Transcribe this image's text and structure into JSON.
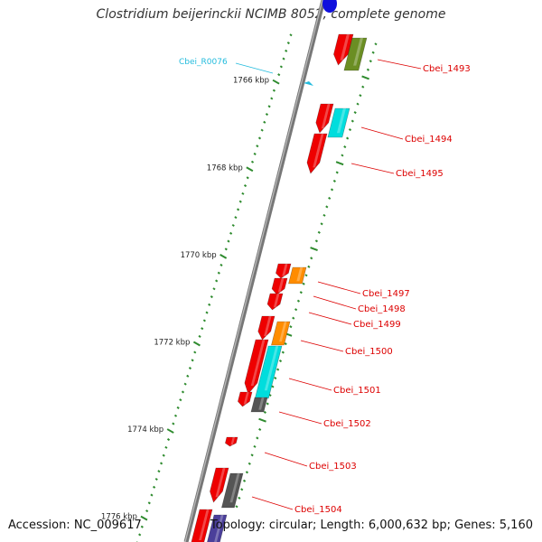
{
  "title": "Clostridium beijerinckii NCIMB 8052, complete genome",
  "footer": {
    "accession": "Accession: NC_009617",
    "topology": "Topology: circular; Length: 6,000,632 bp; Genes: 5,160"
  },
  "colors": {
    "backbone": "#777777",
    "tick": "#2e8b2e",
    "gene_label": "#dd0000",
    "rna_label": "#22bbdd",
    "red": "#ee0000",
    "olive": "#6b8e23",
    "cyan": "#00dddd",
    "orange": "#ff8c00",
    "gray": "#555555",
    "slate": "#4b3f9a",
    "blue": "#1010dd"
  },
  "kbp_labels": [
    "1766 kbp",
    "1768 kbp",
    "1770 kbp",
    "1772 kbp",
    "1774 kbp",
    "1776 kbp"
  ],
  "gene_labels": [
    "Cbei_1493",
    "Cbei_1494",
    "Cbei_1495",
    "Cbei_1497",
    "Cbei_1498",
    "Cbei_1499",
    "Cbei_1500",
    "Cbei_1501",
    "Cbei_1502",
    "Cbei_1503",
    "Cbei_1504"
  ],
  "rna_label": "Cbei_R0076"
}
